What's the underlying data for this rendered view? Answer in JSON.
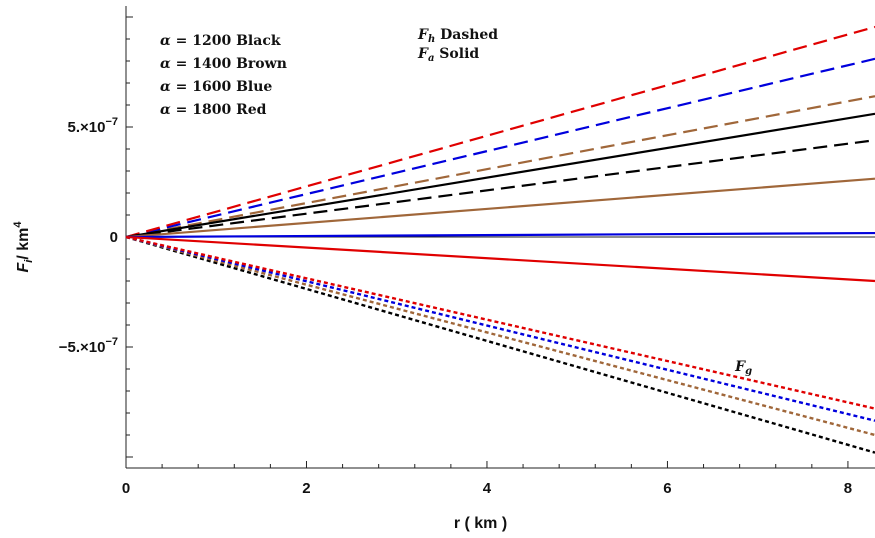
{
  "chart_data": {
    "type": "line",
    "title": "",
    "xlabel": "r ( km )",
    "ylabel_main": "F",
    "ylabel_sub": "i",
    "ylabel_unit": "/ km",
    "ylabel_exp": "4",
    "xlim": [
      0,
      8.3
    ],
    "ylim": [
      -1.05e-06,
      1.05e-06
    ],
    "x_ticks": [
      {
        "value": 0,
        "label": "0"
      },
      {
        "value": 2,
        "label": "2"
      },
      {
        "value": 4,
        "label": "4"
      },
      {
        "value": 6,
        "label": "6"
      },
      {
        "value": 8,
        "label": "8"
      }
    ],
    "y_ticks": [
      {
        "value": 5e-07,
        "label": "5.×10",
        "exp": "−7"
      },
      {
        "value": 0,
        "label": "0",
        "exp": ""
      },
      {
        "value": -5e-07,
        "label": "−5.×10",
        "exp": "−7"
      }
    ],
    "legend": {
      "alpha_entries": [
        {
          "prefix": "α",
          "value": "= 1200",
          "color": "Black"
        },
        {
          "prefix": "α",
          "value": "= 1400",
          "color": "Brown"
        },
        {
          "prefix": "α",
          "value": "= 1600",
          "color": "Blue"
        },
        {
          "prefix": "α",
          "value": "= 1800",
          "color": "Red"
        }
      ],
      "style_entries": [
        {
          "sym": "F",
          "sub": "h",
          "style": "Dashed"
        },
        {
          "sym": "F",
          "sub": "a",
          "style": "Solid"
        }
      ]
    },
    "annotations": [
      {
        "sym": "F",
        "sub": "g",
        "x": 6.75,
        "y": -6.1e-07
      }
    ],
    "colors": {
      "alpha_1200": "#000000",
      "alpha_1400": "#a0673a",
      "alpha_1600": "#0000dd",
      "alpha_1800": "#e00000"
    },
    "series": [
      {
        "group": "Fh",
        "alpha": "1200",
        "style": "dashed",
        "color": "#000000",
        "x": [
          0,
          8.3
        ],
        "y": [
          0,
          4.4e-07
        ]
      },
      {
        "group": "Fh",
        "alpha": "1400",
        "style": "dashed",
        "color": "#a0673a",
        "x": [
          0,
          8.3
        ],
        "y": [
          0,
          6.4e-07
        ]
      },
      {
        "group": "Fh",
        "alpha": "1600",
        "style": "dashed",
        "color": "#0000dd",
        "x": [
          0,
          8.3
        ],
        "y": [
          0,
          8.1e-07
        ]
      },
      {
        "group": "Fh",
        "alpha": "1800",
        "style": "dashed",
        "color": "#e00000",
        "x": [
          0,
          8.3
        ],
        "y": [
          0,
          9.55e-07
        ]
      },
      {
        "group": "Fa",
        "alpha": "1200",
        "style": "solid",
        "color": "#000000",
        "x": [
          0,
          8.3
        ],
        "y": [
          0,
          5.6e-07
        ]
      },
      {
        "group": "Fa",
        "alpha": "1400",
        "style": "solid",
        "color": "#a0673a",
        "x": [
          0,
          8.3
        ],
        "y": [
          0,
          2.65e-07
        ]
      },
      {
        "group": "Fa",
        "alpha": "1600",
        "style": "solid",
        "color": "#0000dd",
        "x": [
          0,
          8.3
        ],
        "y": [
          0,
          1.8e-08
        ]
      },
      {
        "group": "Fa",
        "alpha": "1800",
        "style": "solid",
        "color": "#e00000",
        "x": [
          0,
          8.3
        ],
        "y": [
          0,
          -2e-07
        ]
      },
      {
        "group": "Fg",
        "alpha": "1200",
        "style": "dotted",
        "color": "#000000",
        "x": [
          0,
          8.3
        ],
        "y": [
          0,
          -9.8e-07
        ]
      },
      {
        "group": "Fg",
        "alpha": "1400",
        "style": "dotted",
        "color": "#a0673a",
        "x": [
          0,
          8.3
        ],
        "y": [
          0,
          -9e-07
        ]
      },
      {
        "group": "Fg",
        "alpha": "1600",
        "style": "dotted",
        "color": "#0000dd",
        "x": [
          0,
          8.3
        ],
        "y": [
          0,
          -8.35e-07
        ]
      },
      {
        "group": "Fg",
        "alpha": "1800",
        "style": "dotted",
        "color": "#e00000",
        "x": [
          0,
          8.3
        ],
        "y": [
          0,
          -7.8e-07
        ]
      }
    ],
    "grid": false,
    "legend_position": "top-left"
  }
}
